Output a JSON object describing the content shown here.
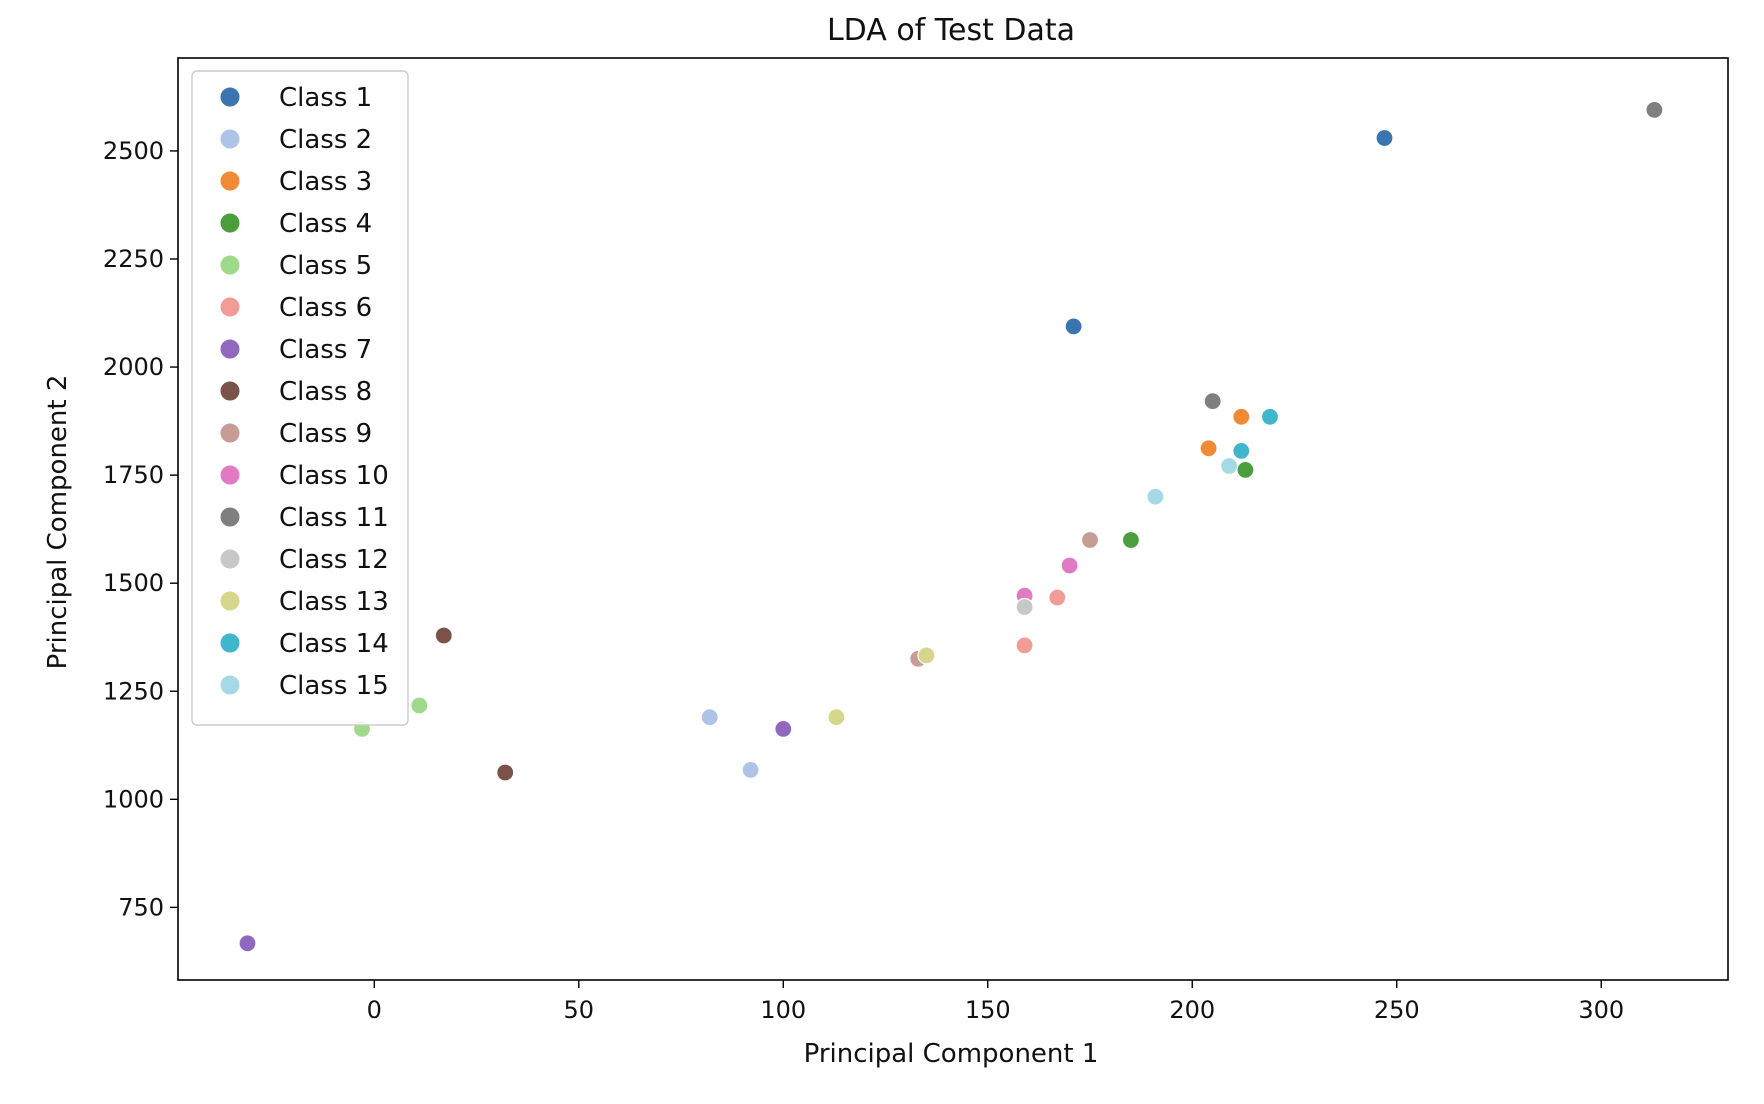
{
  "chart_data": {
    "type": "scatter",
    "title": "LDA of Test Data",
    "xlabel": "Principal Component 1",
    "ylabel": "Principal Component 2",
    "xlim": [
      -48,
      331
    ],
    "ylim": [
      582,
      2715
    ],
    "xticks": [
      0,
      50,
      100,
      150,
      200,
      250,
      300
    ],
    "yticks": [
      750,
      1000,
      1250,
      1500,
      1750,
      2000,
      2250,
      2500
    ],
    "grid": false,
    "legend_position": "upper-left",
    "series": [
      {
        "name": "Class 1",
        "color": "#3a75b0",
        "points": [
          [
            247,
            2530
          ],
          [
            171,
            2094
          ]
        ]
      },
      {
        "name": "Class 2",
        "color": "#aec4e6",
        "points": [
          [
            82,
            1190
          ],
          [
            92,
            1068
          ]
        ]
      },
      {
        "name": "Class 3",
        "color": "#f08a34",
        "points": [
          [
            212,
            1885
          ],
          [
            204,
            1812
          ]
        ]
      },
      {
        "name": "Class 4",
        "color": "#4a9e3c",
        "points": [
          [
            213,
            1762
          ],
          [
            185,
            1600
          ]
        ]
      },
      {
        "name": "Class 5",
        "color": "#9fd98a",
        "points": [
          [
            11,
            1217
          ],
          [
            -3,
            1163
          ]
        ]
      },
      {
        "name": "Class 6",
        "color": "#f29c97",
        "points": [
          [
            167,
            1467
          ],
          [
            159,
            1356
          ]
        ]
      },
      {
        "name": "Class 7",
        "color": "#9068be",
        "points": [
          [
            100,
            1163
          ],
          [
            -31,
            667
          ]
        ]
      },
      {
        "name": "Class 8",
        "color": "#7b5249",
        "points": [
          [
            17,
            1379
          ],
          [
            32,
            1062
          ]
        ]
      },
      {
        "name": "Class 9",
        "color": "#c69c94",
        "points": [
          [
            175,
            1600
          ],
          [
            133,
            1325
          ]
        ]
      },
      {
        "name": "Class 10",
        "color": "#e07ac4",
        "points": [
          [
            170,
            1541
          ],
          [
            159,
            1471
          ]
        ]
      },
      {
        "name": "Class 11",
        "color": "#7f7f7f",
        "points": [
          [
            313,
            2595
          ],
          [
            205,
            1921
          ]
        ]
      },
      {
        "name": "Class 12",
        "color": "#c8c8c8",
        "points": [
          [
            159,
            1445
          ]
        ]
      },
      {
        "name": "Class 13",
        "color": "#d6d68c",
        "points": [
          [
            135,
            1333
          ],
          [
            113,
            1190
          ]
        ]
      },
      {
        "name": "Class 14",
        "color": "#3fb6cc",
        "points": [
          [
            219,
            1885
          ],
          [
            212,
            1806
          ]
        ]
      },
      {
        "name": "Class 15",
        "color": "#a6d9e6",
        "points": [
          [
            191,
            1700
          ],
          [
            209,
            1771
          ]
        ]
      }
    ]
  }
}
